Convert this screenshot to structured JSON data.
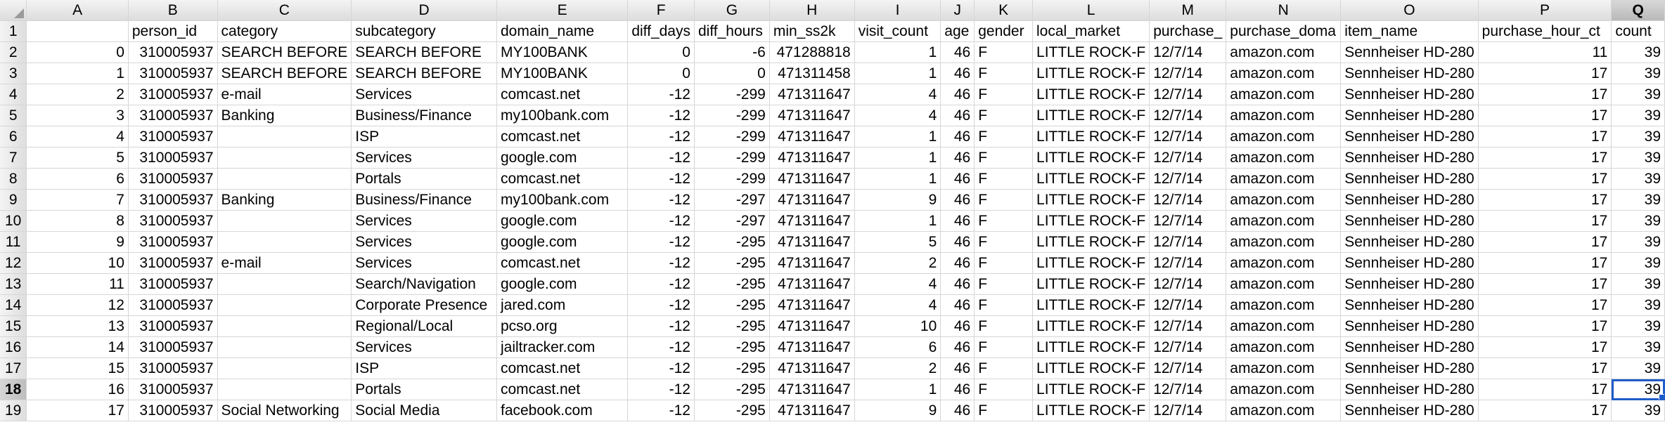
{
  "columns": [
    "A",
    "B",
    "C",
    "D",
    "E",
    "F",
    "G",
    "H",
    "I",
    "J",
    "K",
    "L",
    "M",
    "N",
    "O",
    "P",
    "Q"
  ],
  "selected_column": "Q",
  "selected_row": 18,
  "header_row": {
    "row_number": 1,
    "cells": [
      "",
      "person_id",
      "category",
      "subcategory",
      "domain_name",
      "diff_days",
      "diff_hours",
      "min_ss2k",
      "visit_count",
      "age",
      "gender",
      "local_market",
      "purchase_",
      "purchase_doma",
      "item_name",
      "purchase_hour_ct",
      "count"
    ]
  },
  "rows": [
    {
      "row_number": 2,
      "cells": [
        "0",
        "310005937",
        "SEARCH BEFORE",
        "SEARCH BEFORE",
        "MY100BANK",
        "0",
        "-6",
        "471288818",
        "1",
        "46",
        "F",
        "LITTLE ROCK-F",
        "12/7/14",
        "amazon.com",
        "Sennheiser HD-280",
        "11",
        "39"
      ]
    },
    {
      "row_number": 3,
      "cells": [
        "1",
        "310005937",
        "SEARCH BEFORE",
        "SEARCH BEFORE",
        "MY100BANK",
        "0",
        "0",
        "471311458",
        "1",
        "46",
        "F",
        "LITTLE ROCK-F",
        "12/7/14",
        "amazon.com",
        "Sennheiser HD-280",
        "17",
        "39"
      ]
    },
    {
      "row_number": 4,
      "cells": [
        "2",
        "310005937",
        "e-mail",
        "Services",
        "comcast.net",
        "-12",
        "-299",
        "471311647",
        "4",
        "46",
        "F",
        "LITTLE ROCK-F",
        "12/7/14",
        "amazon.com",
        "Sennheiser HD-280",
        "17",
        "39"
      ]
    },
    {
      "row_number": 5,
      "cells": [
        "3",
        "310005937",
        "Banking",
        "Business/Finance",
        "my100bank.com",
        "-12",
        "-299",
        "471311647",
        "4",
        "46",
        "F",
        "LITTLE ROCK-F",
        "12/7/14",
        "amazon.com",
        "Sennheiser HD-280",
        "17",
        "39"
      ]
    },
    {
      "row_number": 6,
      "cells": [
        "4",
        "310005937",
        "",
        "ISP",
        "comcast.net",
        "-12",
        "-299",
        "471311647",
        "1",
        "46",
        "F",
        "LITTLE ROCK-F",
        "12/7/14",
        "amazon.com",
        "Sennheiser HD-280",
        "17",
        "39"
      ]
    },
    {
      "row_number": 7,
      "cells": [
        "5",
        "310005937",
        "",
        "Services",
        "google.com",
        "-12",
        "-299",
        "471311647",
        "1",
        "46",
        "F",
        "LITTLE ROCK-F",
        "12/7/14",
        "amazon.com",
        "Sennheiser HD-280",
        "17",
        "39"
      ]
    },
    {
      "row_number": 8,
      "cells": [
        "6",
        "310005937",
        "",
        "Portals",
        "comcast.net",
        "-12",
        "-299",
        "471311647",
        "1",
        "46",
        "F",
        "LITTLE ROCK-F",
        "12/7/14",
        "amazon.com",
        "Sennheiser HD-280",
        "17",
        "39"
      ]
    },
    {
      "row_number": 9,
      "cells": [
        "7",
        "310005937",
        "Banking",
        "Business/Finance",
        "my100bank.com",
        "-12",
        "-297",
        "471311647",
        "9",
        "46",
        "F",
        "LITTLE ROCK-F",
        "12/7/14",
        "amazon.com",
        "Sennheiser HD-280",
        "17",
        "39"
      ]
    },
    {
      "row_number": 10,
      "cells": [
        "8",
        "310005937",
        "",
        "Services",
        "google.com",
        "-12",
        "-297",
        "471311647",
        "1",
        "46",
        "F",
        "LITTLE ROCK-F",
        "12/7/14",
        "amazon.com",
        "Sennheiser HD-280",
        "17",
        "39"
      ]
    },
    {
      "row_number": 11,
      "cells": [
        "9",
        "310005937",
        "",
        "Services",
        "google.com",
        "-12",
        "-295",
        "471311647",
        "5",
        "46",
        "F",
        "LITTLE ROCK-F",
        "12/7/14",
        "amazon.com",
        "Sennheiser HD-280",
        "17",
        "39"
      ]
    },
    {
      "row_number": 12,
      "cells": [
        "10",
        "310005937",
        "e-mail",
        "Services",
        "comcast.net",
        "-12",
        "-295",
        "471311647",
        "2",
        "46",
        "F",
        "LITTLE ROCK-F",
        "12/7/14",
        "amazon.com",
        "Sennheiser HD-280",
        "17",
        "39"
      ]
    },
    {
      "row_number": 13,
      "cells": [
        "11",
        "310005937",
        "",
        "Search/Navigation",
        "google.com",
        "-12",
        "-295",
        "471311647",
        "4",
        "46",
        "F",
        "LITTLE ROCK-F",
        "12/7/14",
        "amazon.com",
        "Sennheiser HD-280",
        "17",
        "39"
      ]
    },
    {
      "row_number": 14,
      "cells": [
        "12",
        "310005937",
        "",
        "Corporate Presence",
        "jared.com",
        "-12",
        "-295",
        "471311647",
        "4",
        "46",
        "F",
        "LITTLE ROCK-F",
        "12/7/14",
        "amazon.com",
        "Sennheiser HD-280",
        "17",
        "39"
      ]
    },
    {
      "row_number": 15,
      "cells": [
        "13",
        "310005937",
        "",
        "Regional/Local",
        "pcso.org",
        "-12",
        "-295",
        "471311647",
        "10",
        "46",
        "F",
        "LITTLE ROCK-F",
        "12/7/14",
        "amazon.com",
        "Sennheiser HD-280",
        "17",
        "39"
      ]
    },
    {
      "row_number": 16,
      "cells": [
        "14",
        "310005937",
        "",
        "Services",
        "jailtracker.com",
        "-12",
        "-295",
        "471311647",
        "6",
        "46",
        "F",
        "LITTLE ROCK-F",
        "12/7/14",
        "amazon.com",
        "Sennheiser HD-280",
        "17",
        "39"
      ]
    },
    {
      "row_number": 17,
      "cells": [
        "15",
        "310005937",
        "",
        "ISP",
        "comcast.net",
        "-12",
        "-295",
        "471311647",
        "2",
        "46",
        "F",
        "LITTLE ROCK-F",
        "12/7/14",
        "amazon.com",
        "Sennheiser HD-280",
        "17",
        "39"
      ]
    },
    {
      "row_number": 18,
      "cells": [
        "16",
        "310005937",
        "",
        "Portals",
        "comcast.net",
        "-12",
        "-295",
        "471311647",
        "1",
        "46",
        "F",
        "LITTLE ROCK-F",
        "12/7/14",
        "amazon.com",
        "Sennheiser HD-280",
        "17",
        "39"
      ]
    },
    {
      "row_number": 19,
      "cells": [
        "17",
        "310005937",
        "Social Networking",
        "Social Media",
        "facebook.com",
        "-12",
        "-295",
        "471311647",
        "9",
        "46",
        "F",
        "LITTLE ROCK-F",
        "12/7/14",
        "amazon.com",
        "Sennheiser HD-280",
        "17",
        "39"
      ]
    }
  ],
  "colors": {
    "selection": "#1f5bc9",
    "gridline": "#d6d6d6",
    "header_bg": "#e6e6e6"
  }
}
